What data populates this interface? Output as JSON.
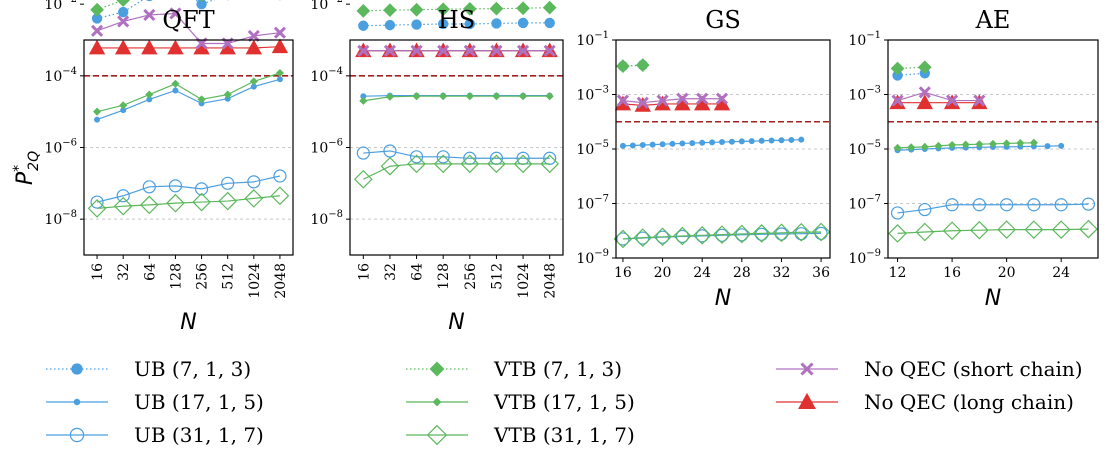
{
  "figure": {
    "ylabel_main": "P",
    "ylabel_sup": "*",
    "ylabel_sub": "2Q"
  },
  "colors": {
    "blue": "#4a9fe0",
    "green": "#5cb85c",
    "purple": "#b070c0",
    "red": "#e03030",
    "threshold": "#a02020",
    "grid": "#c8c8c8"
  },
  "legend": [
    {
      "label": "UB (7, 1, 3)",
      "key": "ub7"
    },
    {
      "label": "UB (17, 1, 5)",
      "key": "ub17"
    },
    {
      "label": "UB (31, 1, 7)",
      "key": "ub31"
    },
    {
      "label": "VTB (7, 1, 3)",
      "key": "vtb7"
    },
    {
      "label": "VTB (17, 1, 5)",
      "key": "vtb17"
    },
    {
      "label": "VTB (31, 1, 7)",
      "key": "vtb31"
    },
    {
      "label": "No QEC (short chain)",
      "key": "short"
    },
    {
      "label": "No QEC (long chain)",
      "key": "long"
    }
  ],
  "chart_data": [
    {
      "title": "QFT",
      "type": "line",
      "xscale": "categorical",
      "yscale": "log",
      "xlabel": "N",
      "ylim_exp": [
        -9,
        -3
      ],
      "threshold": 0.0001,
      "categories": [
        "16",
        "32",
        "64",
        "128",
        "256",
        "512",
        "1024",
        "2048"
      ],
      "x": [
        16,
        32,
        64,
        128,
        256,
        512,
        1024,
        2048
      ],
      "xticks": [
        16,
        32,
        64,
        128,
        256,
        512,
        1024,
        2048
      ],
      "yticks_exp": [
        -8,
        -6,
        -4,
        -2
      ],
      "tick_labels": [
        "16",
        "32",
        "64",
        "128",
        "256",
        "512",
        "1024",
        "2048"
      ],
      "y_tick_labels": [
        "10^-8",
        "10^-6",
        "10^-4",
        "10^-2"
      ],
      "series": [
        {
          "key": "ub7",
          "values": [
            0.004,
            0.006,
            0.017,
            0.035,
            0.01,
            0.018,
            0.035,
            0.018
          ]
        },
        {
          "key": "ub17",
          "values": [
            6e-06,
            1.1e-05,
            2.2e-05,
            3.9e-05,
            1.7e-05,
            2.3e-05,
            5e-05,
            8e-05
          ]
        },
        {
          "key": "ub31",
          "values": [
            3e-08,
            4.5e-08,
            8e-08,
            8.5e-08,
            7e-08,
            1e-07,
            1.1e-07,
            1.6e-07
          ]
        },
        {
          "key": "vtb7",
          "values": [
            0.007,
            0.013,
            0.03,
            0.07,
            0.018,
            0.027,
            0.04,
            0.02
          ]
        },
        {
          "key": "vtb17",
          "values": [
            1e-05,
            1.5e-05,
            3e-05,
            6e-05,
            2.2e-05,
            3e-05,
            7e-05,
            0.00012
          ]
        },
        {
          "key": "vtb31",
          "values": [
            2e-08,
            2.3e-08,
            2.5e-08,
            2.8e-08,
            3e-08,
            3.2e-08,
            3.8e-08,
            4.5e-08
          ]
        },
        {
          "key": "short",
          "values": [
            0.0018,
            0.0033,
            0.005,
            0.0055,
            0.0008,
            0.0008,
            0.0013,
            0.0016
          ]
        },
        {
          "key": "long",
          "values": [
            0.0006,
            0.0006,
            0.0006,
            0.0006,
            0.0006,
            0.0006,
            0.0006,
            0.00065
          ]
        }
      ]
    },
    {
      "title": "HS",
      "type": "line",
      "xscale": "categorical",
      "yscale": "log",
      "xlabel": "N",
      "ylim_exp": [
        -9,
        -3
      ],
      "threshold": 0.0001,
      "categories": [
        "16",
        "32",
        "64",
        "128",
        "256",
        "512",
        "1024",
        "2048"
      ],
      "x": [
        16,
        32,
        64,
        128,
        256,
        512,
        1024,
        2048
      ],
      "xticks": [
        16,
        32,
        64,
        128,
        256,
        512,
        1024,
        2048
      ],
      "yticks_exp": [
        -8,
        -6,
        -4,
        -2
      ],
      "tick_labels": [
        "16",
        "32",
        "64",
        "128",
        "256",
        "512",
        "1024",
        "2048"
      ],
      "y_tick_labels": [
        "10^-8",
        "10^-6",
        "10^-4",
        "10^-2"
      ],
      "series": [
        {
          "key": "ub7",
          "values": [
            0.0025,
            0.0026,
            0.0027,
            0.0028,
            0.0028,
            0.0029,
            0.003,
            0.003
          ]
        },
        {
          "key": "ub17",
          "values": [
            2.7e-05,
            2.8e-05,
            2.8e-05,
            2.8e-05,
            2.8e-05,
            2.8e-05,
            2.8e-05,
            2.8e-05
          ]
        },
        {
          "key": "ub31",
          "values": [
            7e-07,
            8e-07,
            5.5e-07,
            5.5e-07,
            5e-07,
            5e-07,
            5e-07,
            5e-07
          ]
        },
        {
          "key": "vtb7",
          "values": [
            0.0065,
            0.0068,
            0.007,
            0.0072,
            0.0074,
            0.0075,
            0.0077,
            0.008
          ]
        },
        {
          "key": "vtb17",
          "values": [
            2e-05,
            2.6e-05,
            2.7e-05,
            2.7e-05,
            2.7e-05,
            2.7e-05,
            2.7e-05,
            2.7e-05
          ]
        },
        {
          "key": "vtb31",
          "values": [
            1.3e-07,
            3e-07,
            3.5e-07,
            3.5e-07,
            3.5e-07,
            3.5e-07,
            3.5e-07,
            3.5e-07
          ]
        },
        {
          "key": "short",
          "values": [
            0.0005,
            0.0005,
            0.0005,
            0.0005,
            0.0005,
            0.0005,
            0.0005,
            0.0005
          ]
        },
        {
          "key": "long",
          "values": [
            0.0005,
            0.0005,
            0.0005,
            0.0005,
            0.0005,
            0.0005,
            0.0005,
            0.0005
          ]
        }
      ]
    },
    {
      "title": "GS",
      "type": "line",
      "xscale": "linear",
      "yscale": "log",
      "xlabel": "N",
      "xlim": [
        15.3,
        36.9
      ],
      "ylim_exp": [
        -9,
        -1
      ],
      "threshold": 0.0001,
      "xticks": [
        16,
        20,
        24,
        28,
        32,
        36
      ],
      "yticks_exp": [
        -9,
        -7,
        -5,
        -3,
        -1
      ],
      "tick_labels": [
        "16",
        "20",
        "24",
        "28",
        "32",
        "36"
      ],
      "y_tick_labels": [
        "10^-9",
        "10^-7",
        "10^-5",
        "10^-3",
        "10^-1"
      ],
      "series": [
        {
          "key": "ub7",
          "x": [
            16,
            18
          ],
          "values": [
            0.011,
            0.012
          ]
        },
        {
          "key": "ub17",
          "x": [
            16,
            17,
            18,
            19,
            20,
            21,
            22,
            23,
            24,
            25,
            26,
            27,
            28,
            29,
            30,
            31,
            32,
            33,
            34
          ],
          "values": [
            1.3e-05,
            1.35e-05,
            1.4e-05,
            1.45e-05,
            1.5e-05,
            1.55e-05,
            1.6e-05,
            1.65e-05,
            1.7e-05,
            1.75e-05,
            1.8e-05,
            1.85e-05,
            1.9e-05,
            1.95e-05,
            2e-05,
            2.05e-05,
            2.1e-05,
            2.15e-05,
            2.2e-05
          ]
        },
        {
          "key": "ub31",
          "x": [
            16,
            18,
            20,
            22,
            24,
            26,
            28,
            30,
            32,
            34,
            36
          ],
          "values": [
            5e-09,
            5.4e-09,
            5.8e-09,
            6.2e-09,
            6.5e-09,
            6.8e-09,
            7.1e-09,
            7.4e-09,
            7.6e-09,
            7.8e-09,
            8e-09
          ]
        },
        {
          "key": "vtb7",
          "x": [
            16,
            18
          ],
          "values": [
            0.011,
            0.012
          ]
        },
        {
          "key": "vtb17",
          "x": [],
          "values": []
        },
        {
          "key": "vtb31",
          "x": [
            16,
            18,
            20,
            22,
            24,
            26,
            28,
            30,
            32,
            34,
            36
          ],
          "values": [
            5e-09,
            5.6e-09,
            6e-09,
            6.4e-09,
            6.8e-09,
            7.2e-09,
            7.6e-09,
            8e-09,
            8.4e-09,
            8.8e-09,
            9e-09
          ]
        },
        {
          "key": "short",
          "x": [
            16,
            18,
            20,
            22,
            24,
            26
          ],
          "values": [
            0.0006,
            0.0005,
            0.0006,
            0.0007,
            0.0007,
            0.0007
          ]
        },
        {
          "key": "long",
          "x": [
            16,
            18,
            20,
            22,
            24,
            26
          ],
          "values": [
            0.00045,
            0.0004,
            0.00045,
            0.00045,
            0.00045,
            0.00045
          ]
        }
      ]
    },
    {
      "title": "AE",
      "type": "line",
      "xscale": "linear",
      "yscale": "log",
      "xlabel": "N",
      "xlim": [
        11.3,
        26.7
      ],
      "ylim_exp": [
        -9,
        -1
      ],
      "threshold": 0.0001,
      "xticks": [
        12,
        16,
        20,
        24
      ],
      "yticks_exp": [
        -9,
        -7,
        -5,
        -3,
        -1
      ],
      "tick_labels": [
        "12",
        "16",
        "20",
        "24"
      ],
      "y_tick_labels": [
        "10^-9",
        "10^-7",
        "10^-5",
        "10^-3",
        "10^-1"
      ],
      "series": [
        {
          "key": "ub7",
          "x": [
            12,
            14
          ],
          "values": [
            0.005,
            0.006
          ]
        },
        {
          "key": "ub17",
          "x": [
            12,
            13,
            14,
            15,
            16,
            17,
            18,
            19,
            20,
            21,
            22,
            23,
            24
          ],
          "values": [
            9e-06,
            9.5e-06,
            1e-05,
            1.05e-05,
            1.1e-05,
            1.12e-05,
            1.15e-05,
            1.18e-05,
            1.2e-05,
            1.22e-05,
            1.25e-05,
            1.28e-05,
            1.3e-05
          ]
        },
        {
          "key": "ub31",
          "x": [
            12,
            14,
            16,
            18,
            20,
            22,
            24,
            26
          ],
          "values": [
            4.5e-08,
            6e-08,
            9e-08,
            9e-08,
            9e-08,
            9e-08,
            9e-08,
            9.5e-08
          ]
        },
        {
          "key": "vtb7",
          "x": [
            12,
            14
          ],
          "values": [
            0.009,
            0.01
          ]
        },
        {
          "key": "vtb17",
          "x": [
            12,
            13,
            14,
            15,
            16,
            17,
            18,
            19,
            20,
            21,
            22
          ],
          "values": [
            1.1e-05,
            1.15e-05,
            1.2e-05,
            1.3e-05,
            1.4e-05,
            1.45e-05,
            1.5e-05,
            1.55e-05,
            1.6e-05,
            1.65e-05,
            1.7e-05
          ]
        },
        {
          "key": "vtb31",
          "x": [
            12,
            14,
            16,
            18,
            20,
            22,
            24,
            26
          ],
          "values": [
            8e-09,
            9e-09,
            1e-08,
            1.05e-08,
            1.1e-08,
            1.1e-08,
            1.1e-08,
            1.15e-08
          ]
        },
        {
          "key": "short",
          "x": [
            12,
            14,
            16,
            18
          ],
          "values": [
            0.0006,
            0.0012,
            0.0006,
            0.0006
          ]
        },
        {
          "key": "long",
          "x": [
            12,
            14,
            16,
            18
          ],
          "values": [
            0.0005,
            0.0005,
            0.0005,
            0.0005
          ]
        }
      ]
    }
  ]
}
